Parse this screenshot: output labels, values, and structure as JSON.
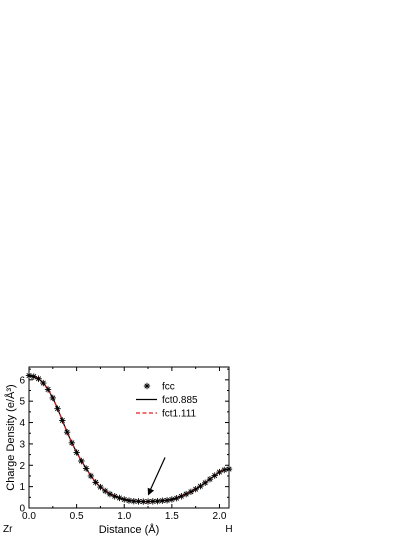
{
  "chart_data": {
    "type": "line",
    "xlabel": "Distance (Å)",
    "ylabel": "Charge Density (e/Å³)",
    "xlim": [
      0.0,
      2.1
    ],
    "ylim": [
      0,
      6.6
    ],
    "x_ticks": [
      "0.0",
      "0.5",
      "1.0",
      "1.5",
      "2.0"
    ],
    "y_ticks": [
      "0",
      "1",
      "2",
      "3",
      "4",
      "5",
      "6"
    ],
    "end_labels": {
      "left": "Zr",
      "right": "H"
    },
    "grid": false,
    "legend_position": "top-right",
    "annotation": {
      "type": "arrow",
      "x": 1.25,
      "y": 0.35
    },
    "series": [
      {
        "name": "fcc",
        "style": "markers",
        "marker": "asterisk",
        "color": "#000000",
        "x": [
          0.0,
          0.05,
          0.1,
          0.15,
          0.2,
          0.25,
          0.3,
          0.35,
          0.4,
          0.45,
          0.5,
          0.55,
          0.6,
          0.65,
          0.7,
          0.75,
          0.8,
          0.85,
          0.9,
          0.95,
          1.0,
          1.05,
          1.1,
          1.15,
          1.2,
          1.25,
          1.3,
          1.35,
          1.4,
          1.45,
          1.5,
          1.55,
          1.6,
          1.65,
          1.7,
          1.75,
          1.8,
          1.85,
          1.9,
          1.95,
          2.0,
          2.05,
          2.1
        ],
        "y": [
          6.2,
          6.15,
          6.05,
          5.85,
          5.55,
          5.15,
          4.65,
          4.1,
          3.55,
          3.05,
          2.6,
          2.2,
          1.85,
          1.5,
          1.2,
          0.98,
          0.8,
          0.65,
          0.55,
          0.47,
          0.4,
          0.35,
          0.32,
          0.31,
          0.3,
          0.3,
          0.31,
          0.32,
          0.34,
          0.36,
          0.4,
          0.46,
          0.55,
          0.65,
          0.76,
          0.88,
          1.02,
          1.18,
          1.35,
          1.52,
          1.68,
          1.78,
          1.82
        ]
      },
      {
        "name": "fct0.885",
        "style": "solid",
        "color": "#000000",
        "x": [
          0.0,
          0.05,
          0.1,
          0.15,
          0.2,
          0.25,
          0.3,
          0.35,
          0.4,
          0.45,
          0.5,
          0.55,
          0.6,
          0.65,
          0.7,
          0.75,
          0.8,
          0.85,
          0.9,
          0.95,
          1.0,
          1.05,
          1.1,
          1.15,
          1.2,
          1.25,
          1.3,
          1.35,
          1.4,
          1.45,
          1.5,
          1.55,
          1.6,
          1.65,
          1.7,
          1.75,
          1.8,
          1.85,
          1.9,
          1.95,
          2.0,
          2.05,
          2.1
        ],
        "y": [
          6.2,
          6.15,
          6.05,
          5.85,
          5.55,
          5.15,
          4.65,
          4.1,
          3.55,
          3.05,
          2.6,
          2.2,
          1.85,
          1.5,
          1.2,
          0.98,
          0.8,
          0.65,
          0.55,
          0.47,
          0.4,
          0.35,
          0.32,
          0.31,
          0.3,
          0.3,
          0.31,
          0.32,
          0.34,
          0.36,
          0.4,
          0.46,
          0.55,
          0.65,
          0.76,
          0.88,
          1.02,
          1.18,
          1.35,
          1.52,
          1.68,
          1.78,
          1.82
        ]
      },
      {
        "name": "fct1.111",
        "style": "dashed",
        "color": "#e41a1c",
        "x": [
          0.0,
          0.05,
          0.1,
          0.15,
          0.2,
          0.25,
          0.3,
          0.35,
          0.4,
          0.45,
          0.5,
          0.55,
          0.6,
          0.65,
          0.7,
          0.75,
          0.8,
          0.85,
          0.9,
          0.95,
          1.0,
          1.05,
          1.1,
          1.15,
          1.2,
          1.25,
          1.3,
          1.35,
          1.4,
          1.45,
          1.5,
          1.55,
          1.6,
          1.65,
          1.7,
          1.75,
          1.8,
          1.85,
          1.9,
          1.95,
          2.0,
          2.05,
          2.1
        ],
        "y": [
          6.22,
          6.17,
          6.07,
          5.87,
          5.57,
          5.17,
          4.67,
          4.12,
          3.57,
          3.07,
          2.62,
          2.22,
          1.86,
          1.51,
          1.21,
          0.99,
          0.81,
          0.66,
          0.56,
          0.48,
          0.41,
          0.36,
          0.33,
          0.31,
          0.3,
          0.3,
          0.31,
          0.32,
          0.34,
          0.36,
          0.4,
          0.46,
          0.55,
          0.65,
          0.76,
          0.88,
          1.02,
          1.18,
          1.35,
          1.52,
          1.67,
          1.77,
          1.81
        ]
      }
    ]
  }
}
